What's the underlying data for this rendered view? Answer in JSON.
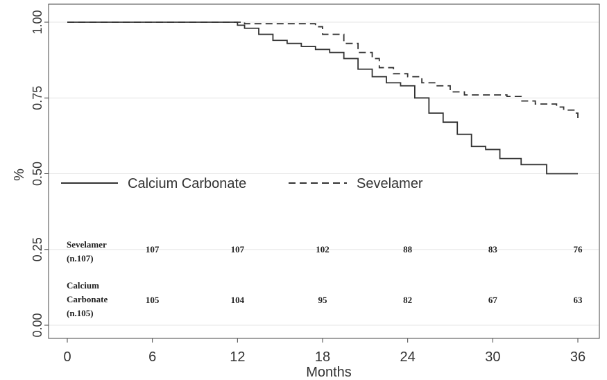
{
  "chart_data": {
    "type": "line",
    "xlabel": "Months",
    "ylabel": "%",
    "xlim": [
      0,
      36
    ],
    "ylim": [
      0,
      1
    ],
    "x_ticks": [
      "0",
      "6",
      "12",
      "18",
      "24",
      "30",
      "36"
    ],
    "y_ticks": [
      "0.00",
      "0.25",
      "0.50",
      "0.75",
      "1.00"
    ],
    "grid": true,
    "legend_position": "middle-left",
    "series": [
      {
        "name": "Calcium Carbonate",
        "style": "solid",
        "color": "#333333",
        "steps": [
          [
            0,
            1.0
          ],
          [
            12,
            0.99
          ],
          [
            12.5,
            0.98
          ],
          [
            13.5,
            0.96
          ],
          [
            14.5,
            0.94
          ],
          [
            15.5,
            0.93
          ],
          [
            16.5,
            0.92
          ],
          [
            17.5,
            0.91
          ],
          [
            18.5,
            0.9
          ],
          [
            19.5,
            0.88
          ],
          [
            20.5,
            0.845
          ],
          [
            21.5,
            0.82
          ],
          [
            22.5,
            0.8
          ],
          [
            23.5,
            0.79
          ],
          [
            24.5,
            0.75
          ],
          [
            25.5,
            0.7
          ],
          [
            26.5,
            0.67
          ],
          [
            27.5,
            0.63
          ],
          [
            28.5,
            0.59
          ],
          [
            29.5,
            0.58
          ],
          [
            30.5,
            0.55
          ],
          [
            32,
            0.53
          ],
          [
            33.8,
            0.5
          ],
          [
            36,
            0.5
          ]
        ]
      },
      {
        "name": "Sevelamer",
        "style": "dashed",
        "color": "#333333",
        "steps": [
          [
            0,
            1.0
          ],
          [
            12.5,
            0.995
          ],
          [
            17.5,
            0.985
          ],
          [
            18,
            0.96
          ],
          [
            19.5,
            0.93
          ],
          [
            20.5,
            0.9
          ],
          [
            21.5,
            0.88
          ],
          [
            22,
            0.85
          ],
          [
            23,
            0.83
          ],
          [
            24,
            0.82
          ],
          [
            25,
            0.8
          ],
          [
            26,
            0.79
          ],
          [
            27,
            0.77
          ],
          [
            28,
            0.76
          ],
          [
            31,
            0.755
          ],
          [
            32,
            0.74
          ],
          [
            33,
            0.73
          ],
          [
            34.5,
            0.72
          ],
          [
            35,
            0.71
          ],
          [
            35.8,
            0.7
          ],
          [
            36,
            0.68
          ]
        ]
      }
    ],
    "risk_table": {
      "rows": [
        {
          "label_lines": [
            "Sevelamer",
            "(n.107)"
          ],
          "values": [
            "107",
            "107",
            "102",
            "88",
            "83",
            "76"
          ]
        },
        {
          "label_lines": [
            "Calcium",
            "Carbonate",
            "(n.105)"
          ],
          "values": [
            "105",
            "104",
            "95",
            "82",
            "67",
            "63"
          ]
        }
      ],
      "at_months": [
        6,
        12,
        18,
        24,
        30,
        36
      ]
    }
  }
}
